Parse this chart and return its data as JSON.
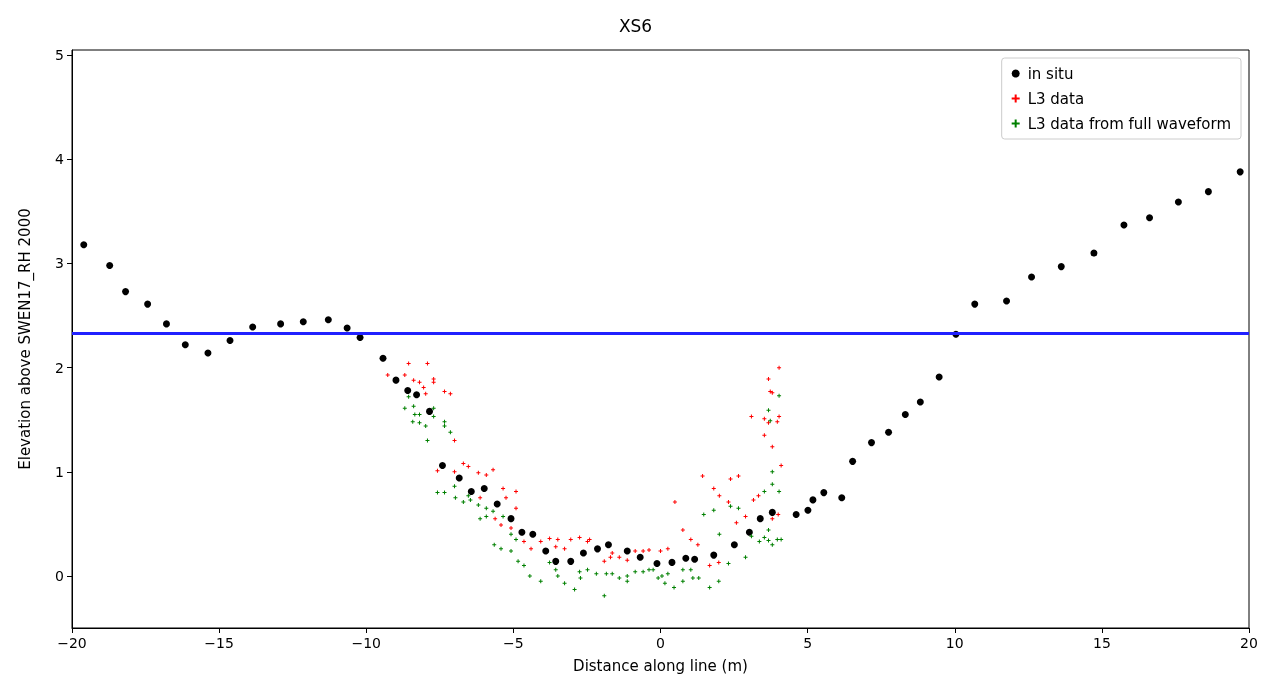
{
  "chart_data": {
    "type": "scatter",
    "title": "XS6",
    "xlabel": "Distance along line (m)",
    "ylabel": "Elevation above SWEN17_RH 2000",
    "xlim": [
      -20,
      20
    ],
    "xticks": [
      -20,
      -15,
      -10,
      -5,
      0,
      5,
      10,
      15,
      20
    ],
    "ylim": [
      -0.5,
      5.05
    ],
    "yticks": [
      0,
      1,
      2,
      3,
      4,
      5
    ],
    "grid": false,
    "legend": "top right",
    "ref_lines": [
      {
        "axis": "y",
        "value": 2.33,
        "color": "#2020ff",
        "line_style": "solid"
      }
    ],
    "series": [
      {
        "name": "in situ",
        "color": "#000000",
        "marker": "circle",
        "x": [
          -19.6,
          -18.72,
          -18.18,
          -17.43,
          -16.79,
          -16.15,
          -15.38,
          -14.63,
          -13.86,
          -12.91,
          -12.14,
          -11.29,
          -10.65,
          -10.21,
          -9.43,
          -8.99,
          -8.59,
          -8.29,
          -7.85,
          -7.41,
          -6.84,
          -6.43,
          -5.99,
          -5.55,
          -5.08,
          -4.71,
          -4.34,
          -3.9,
          -3.56,
          -3.05,
          -2.62,
          -2.14,
          -1.77,
          -1.13,
          -0.69,
          -0.12,
          0.39,
          0.86,
          1.16,
          1.81,
          2.51,
          3.02,
          3.39,
          3.8,
          4.61,
          5.01,
          5.18,
          5.55,
          6.16,
          6.53,
          7.17,
          7.75,
          8.32,
          8.83,
          9.47,
          10.04,
          10.68,
          11.76,
          12.61,
          13.62,
          14.73,
          15.75,
          16.62,
          17.6,
          18.62,
          19.7
        ],
        "values": [
          3.18,
          2.98,
          2.73,
          2.61,
          2.42,
          2.22,
          2.14,
          2.26,
          2.39,
          2.42,
          2.44,
          2.46,
          2.38,
          2.29,
          2.09,
          1.88,
          1.78,
          1.74,
          1.58,
          1.06,
          0.94,
          0.81,
          0.84,
          0.69,
          0.55,
          0.42,
          0.4,
          0.24,
          0.14,
          0.14,
          0.22,
          0.26,
          0.3,
          0.24,
          0.18,
          0.12,
          0.13,
          0.17,
          0.16,
          0.2,
          0.3,
          0.42,
          0.55,
          0.61,
          0.59,
          0.63,
          0.73,
          0.8,
          0.75,
          1.1,
          1.28,
          1.38,
          1.55,
          1.67,
          1.91,
          2.32,
          2.61,
          2.64,
          2.87,
          2.97,
          3.1,
          3.37,
          3.44,
          3.59,
          3.69,
          3.88
        ]
      },
      {
        "name": "L3 data",
        "color": "#ff0000",
        "marker": "cross",
        "x": [
          -8.56,
          -7.92,
          -9.27,
          -8.69,
          -8.39,
          -8.19,
          -8.05,
          -7.71,
          -7.71,
          -7.98,
          -7.34,
          -7.14,
          -7.0,
          -7.58,
          -6.7,
          -6.53,
          -6.19,
          -5.92,
          -5.69,
          -7.0,
          -5.35,
          -4.91,
          -5.25,
          -4.91,
          -6.13,
          -5.42,
          -5.62,
          -5.08,
          -4.64,
          -4.4,
          -4.07,
          -3.77,
          -3.49,
          -3.56,
          -3.26,
          -3.05,
          -2.75,
          -2.48,
          -2.41,
          -1.91,
          -1.64,
          -1.4,
          -1.13,
          -0.86,
          -0.59,
          -0.39,
          0.0,
          0.25,
          0.49,
          0.76,
          -1.7,
          1.03,
          1.27,
          1.43,
          1.81,
          2.0,
          1.67,
          1.98,
          2.38,
          2.65,
          2.31,
          2.58,
          2.89,
          3.16,
          3.33,
          3.09,
          3.53,
          3.53,
          3.67,
          3.73,
          3.8,
          4.03,
          3.67,
          3.97,
          4.03,
          3.8,
          4.1,
          3.8,
          4.0
        ],
        "values": [
          2.04,
          2.04,
          1.93,
          1.93,
          1.88,
          1.86,
          1.81,
          1.89,
          1.86,
          1.75,
          1.77,
          1.75,
          1.3,
          1.01,
          1.08,
          1.05,
          0.99,
          0.97,
          1.02,
          1.0,
          0.84,
          0.81,
          0.75,
          0.65,
          0.75,
          0.49,
          0.55,
          0.46,
          0.33,
          0.26,
          0.33,
          0.36,
          0.35,
          0.28,
          0.26,
          0.35,
          0.37,
          0.33,
          0.35,
          0.14,
          0.22,
          0.18,
          0.15,
          0.24,
          0.24,
          0.25,
          0.24,
          0.26,
          0.71,
          0.44,
          0.18,
          0.35,
          0.3,
          0.96,
          0.84,
          0.77,
          0.1,
          0.13,
          0.93,
          0.96,
          0.71,
          0.51,
          0.57,
          0.73,
          0.77,
          1.53,
          1.35,
          1.51,
          1.89,
          1.77,
          1.76,
          2.0,
          1.47,
          1.48,
          1.53,
          1.24,
          1.06,
          0.55,
          0.59
        ]
      },
      {
        "name": "L3 data from full waveform",
        "color": "#008000",
        "marker": "cross",
        "x": [
          -8.56,
          -8.69,
          -8.39,
          -8.35,
          -8.19,
          -8.42,
          -8.19,
          -7.98,
          -7.92,
          -7.71,
          -7.71,
          -7.34,
          -7.34,
          -7.14,
          -7.58,
          -7.34,
          -7.0,
          -6.97,
          -6.7,
          -6.53,
          -6.46,
          -6.19,
          -5.92,
          -5.69,
          -6.13,
          -5.92,
          -5.35,
          -5.08,
          -4.91,
          -5.65,
          -5.42,
          -5.08,
          -4.84,
          -4.64,
          -4.44,
          -4.07,
          -3.77,
          -3.56,
          -3.49,
          -3.26,
          -2.92,
          -2.75,
          -2.72,
          -2.48,
          -2.18,
          -1.91,
          -1.84,
          -1.64,
          -1.4,
          -1.13,
          -1.13,
          -0.86,
          -0.59,
          -0.39,
          -0.25,
          -0.08,
          0.05,
          0.25,
          0.15,
          0.46,
          0.76,
          0.76,
          1.03,
          1.1,
          1.3,
          1.67,
          1.98,
          1.47,
          1.81,
          2.31,
          2.0,
          2.38,
          2.65,
          2.89,
          3.09,
          3.36,
          3.53,
          3.67,
          3.8,
          3.97,
          4.1,
          3.53,
          3.8,
          4.03,
          3.8,
          3.67,
          3.73,
          4.03,
          3.67
        ],
        "values": [
          1.72,
          1.61,
          1.63,
          1.55,
          1.55,
          1.48,
          1.47,
          1.44,
          1.3,
          1.61,
          1.53,
          1.48,
          1.44,
          1.38,
          0.8,
          0.8,
          0.86,
          0.75,
          0.71,
          0.77,
          0.73,
          0.68,
          0.65,
          0.62,
          0.55,
          0.57,
          0.57,
          0.4,
          0.35,
          0.3,
          0.26,
          0.24,
          0.14,
          0.1,
          0.0,
          -0.05,
          0.13,
          0.06,
          0.0,
          -0.07,
          -0.13,
          0.04,
          -0.02,
          0.06,
          0.02,
          -0.19,
          0.02,
          0.02,
          -0.02,
          0.0,
          -0.05,
          0.04,
          0.04,
          0.06,
          0.06,
          -0.02,
          0.0,
          0.02,
          -0.07,
          -0.11,
          0.06,
          -0.05,
          0.06,
          -0.02,
          -0.02,
          -0.11,
          -0.05,
          0.59,
          0.63,
          0.12,
          0.4,
          0.67,
          0.65,
          0.18,
          0.38,
          0.33,
          0.37,
          0.44,
          0.3,
          0.35,
          0.35,
          0.81,
          0.88,
          0.81,
          1.0,
          1.59,
          1.49,
          1.73,
          0.34
        ]
      }
    ]
  }
}
